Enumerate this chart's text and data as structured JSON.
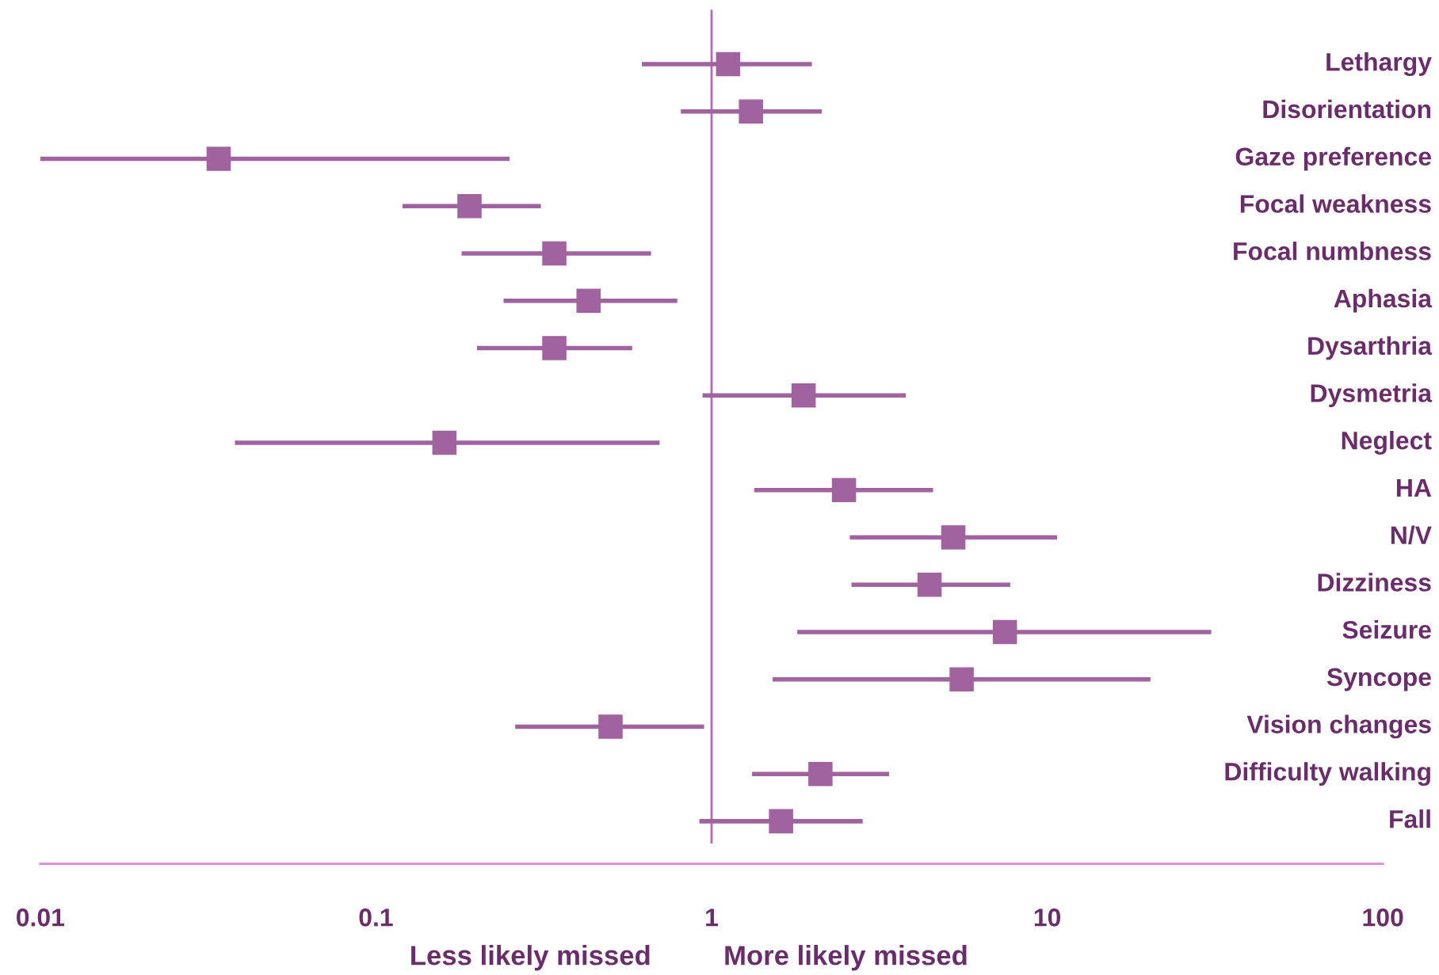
{
  "chart_data": {
    "type": "scatter",
    "categories": [
      "Lethargy",
      "Disorientation",
      "Gaze preference",
      "Focal weakness",
      "Focal numbness",
      "Aphasia",
      "Dysarthria",
      "Dysmetria",
      "Neglect",
      "HA",
      "N/V",
      "Dizziness",
      "Seizure",
      "Syncope",
      "Vision changes",
      "Difficulty walking",
      "Fall"
    ],
    "orientation": "horizontal",
    "values": [
      1.12,
      1.31,
      0.034,
      0.19,
      0.34,
      0.43,
      0.34,
      1.88,
      0.16,
      2.48,
      5.25,
      4.46,
      7.48,
      5.56,
      0.5,
      2.11,
      1.61
    ],
    "errors": [
      [
        0.62,
        1.99
      ],
      [
        0.81,
        2.13
      ],
      [
        0.01,
        0.25
      ],
      [
        0.12,
        0.31
      ],
      [
        0.18,
        0.66
      ],
      [
        0.24,
        0.79
      ],
      [
        0.2,
        0.58
      ],
      [
        0.94,
        3.79
      ],
      [
        0.038,
        0.7
      ],
      [
        1.34,
        4.57
      ],
      [
        2.58,
        10.7
      ],
      [
        2.61,
        7.76
      ],
      [
        1.8,
        30.8
      ],
      [
        1.52,
        20.3
      ],
      [
        0.26,
        0.95
      ],
      [
        1.32,
        3.38
      ],
      [
        0.92,
        2.82
      ]
    ],
    "color": "#a063a0",
    "marker": "square",
    "log": "x",
    "xlim": [
      0.01,
      100
    ],
    "xticks": [
      0.01,
      0.1,
      1,
      10,
      100
    ],
    "grid": false,
    "ref_lines": [
      {
        "axis": "x",
        "value": 1,
        "color": "#b469b4"
      }
    ],
    "annotations": [
      "Less likely missed",
      "More likely missed"
    ]
  }
}
